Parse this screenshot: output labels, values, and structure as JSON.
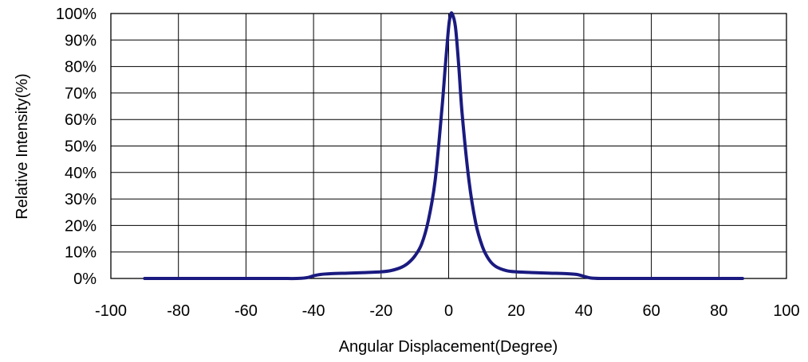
{
  "chart_data": {
    "type": "line",
    "title": "",
    "xlabel": "Angular Displacement(Degree)",
    "ylabel": "Relative Intensity(%)",
    "xlim": [
      -100,
      100
    ],
    "ylim": [
      0,
      100
    ],
    "x_ticks": [
      -100,
      -80,
      -60,
      -40,
      -20,
      0,
      20,
      40,
      60,
      80,
      100
    ],
    "x_tick_labels": [
      "-100",
      "-80",
      "-60",
      "-40",
      "-20",
      "0",
      "20",
      "40",
      "60",
      "80",
      "100"
    ],
    "y_ticks": [
      0,
      10,
      20,
      30,
      40,
      50,
      60,
      70,
      80,
      90,
      100
    ],
    "y_tick_labels": [
      "0%",
      "10%",
      "20%",
      "30%",
      "40%",
      "50%",
      "60%",
      "70%",
      "80%",
      "90%",
      "100%"
    ],
    "grid": true,
    "legend": "none",
    "series": [
      {
        "color": "#1a1a80",
        "points": [
          [
            -90,
            0
          ],
          [
            -80,
            0
          ],
          [
            -60,
            0
          ],
          [
            -50,
            0
          ],
          [
            -45,
            0
          ],
          [
            -42,
            0.3
          ],
          [
            -40,
            1.0
          ],
          [
            -38,
            1.5
          ],
          [
            -35,
            1.8
          ],
          [
            -30,
            2.0
          ],
          [
            -25,
            2.2
          ],
          [
            -20,
            2.5
          ],
          [
            -17,
            3.0
          ],
          [
            -14,
            4.2
          ],
          [
            -12,
            5.8
          ],
          [
            -10,
            8.5
          ],
          [
            -8,
            13
          ],
          [
            -6,
            22
          ],
          [
            -4,
            37
          ],
          [
            -2,
            64
          ],
          [
            -1,
            80
          ],
          [
            0,
            95
          ],
          [
            0.5,
            99
          ],
          [
            1,
            100
          ],
          [
            2,
            95
          ],
          [
            3,
            80
          ],
          [
            4,
            62
          ],
          [
            6,
            37
          ],
          [
            8,
            21
          ],
          [
            10,
            12
          ],
          [
            12,
            7
          ],
          [
            14,
            4.5
          ],
          [
            17,
            3.0
          ],
          [
            20,
            2.5
          ],
          [
            25,
            2.2
          ],
          [
            30,
            2.0
          ],
          [
            35,
            1.8
          ],
          [
            38,
            1.5
          ],
          [
            40,
            0.8
          ],
          [
            42,
            0.2
          ],
          [
            45,
            0
          ],
          [
            50,
            0
          ],
          [
            60,
            0
          ],
          [
            80,
            0
          ],
          [
            87,
            0
          ]
        ]
      }
    ]
  }
}
